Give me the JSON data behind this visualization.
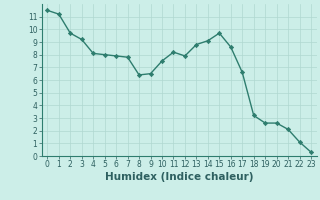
{
  "x": [
    0,
    1,
    2,
    3,
    4,
    5,
    6,
    7,
    8,
    9,
    10,
    11,
    12,
    13,
    14,
    15,
    16,
    17,
    18,
    19,
    20,
    21,
    22,
    23
  ],
  "y": [
    11.5,
    11.2,
    9.7,
    9.2,
    8.1,
    8.0,
    7.9,
    7.8,
    6.4,
    6.5,
    7.5,
    8.2,
    7.9,
    8.8,
    9.1,
    9.7,
    8.6,
    6.6,
    3.2,
    2.6,
    2.6,
    2.1,
    1.1,
    0.3
  ],
  "line_color": "#2e7d6e",
  "marker": "D",
  "marker_size": 2.2,
  "bg_color": "#cceee8",
  "grid_color": "#b0d8d0",
  "xlabel": "Humidex (Indice chaleur)",
  "xlim": [
    -0.5,
    23.5
  ],
  "ylim": [
    0,
    12
  ],
  "yticks": [
    0,
    1,
    2,
    3,
    4,
    5,
    6,
    7,
    8,
    9,
    10,
    11
  ],
  "xticks": [
    0,
    1,
    2,
    3,
    4,
    5,
    6,
    7,
    8,
    9,
    10,
    11,
    12,
    13,
    14,
    15,
    16,
    17,
    18,
    19,
    20,
    21,
    22,
    23
  ],
  "tick_label_fontsize": 5.5,
  "xlabel_fontsize": 7.5,
  "tick_color": "#2e6060",
  "label_color": "#2e6060",
  "spine_color": "#2e7d6e",
  "linewidth": 1.0
}
